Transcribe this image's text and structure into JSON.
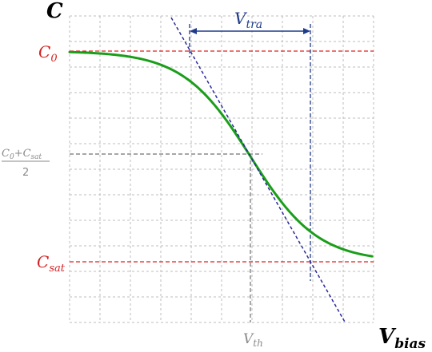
{
  "diagram": {
    "y_axis_symbol": "C",
    "x_axis_symbol": "V",
    "x_axis_subscript": "bias",
    "c0_label": {
      "base": "C",
      "sub": "0"
    },
    "csat_label": {
      "base": "C",
      "sub": "sat"
    },
    "mid_label": {
      "numerator": {
        "a_base": "C",
        "a_sub": "0",
        "op": "+",
        "b_base": "C",
        "b_sub": "sat"
      },
      "denominator": "2"
    },
    "vth_label": {
      "base": "V",
      "sub": "th"
    },
    "vtra_label": {
      "base": "V",
      "sub": "tra"
    },
    "colors": {
      "curve": "#1a9e1a",
      "reference_lines": "#e02020",
      "tangent": "#2a2a9a",
      "guides": "#1e3a8a",
      "midline": "#707070",
      "grid": "#bdbdbd",
      "c_label": "#d42020",
      "vtra_label": "#1e3a8a",
      "vth_label": "#8a8a8a"
    }
  }
}
